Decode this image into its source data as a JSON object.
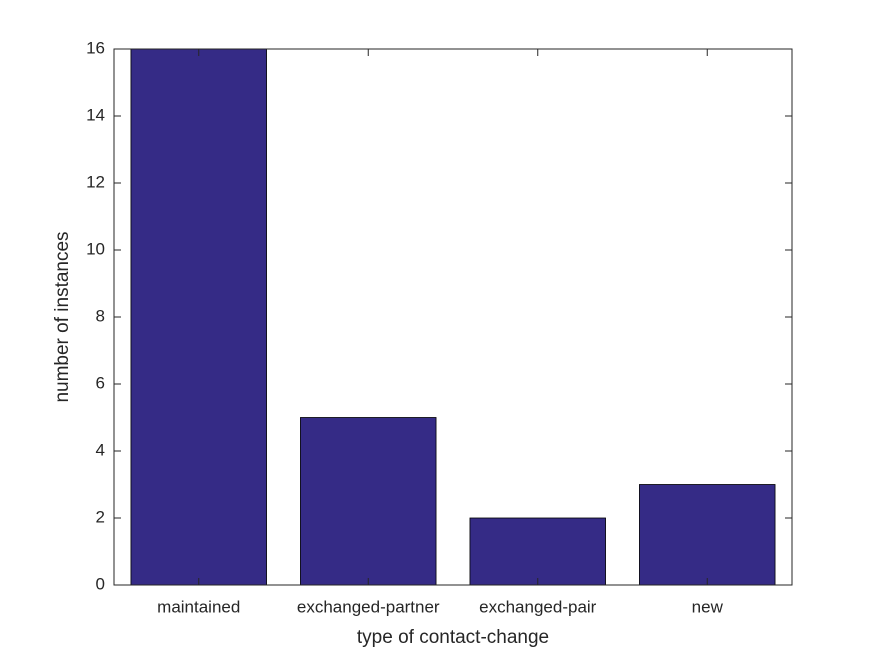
{
  "chart_data": {
    "type": "bar",
    "xlabel": "type of contact-change",
    "ylabel": "number of instances",
    "categories": [
      "maintained",
      "exchanged-partner",
      "exchanged-pair",
      "new"
    ],
    "values": [
      16,
      5,
      2,
      3
    ],
    "color": "#352b86",
    "ylim": [
      0,
      16
    ],
    "yticks": [
      0,
      2,
      4,
      6,
      8,
      10,
      12,
      14,
      16
    ],
    "grid": false
  }
}
